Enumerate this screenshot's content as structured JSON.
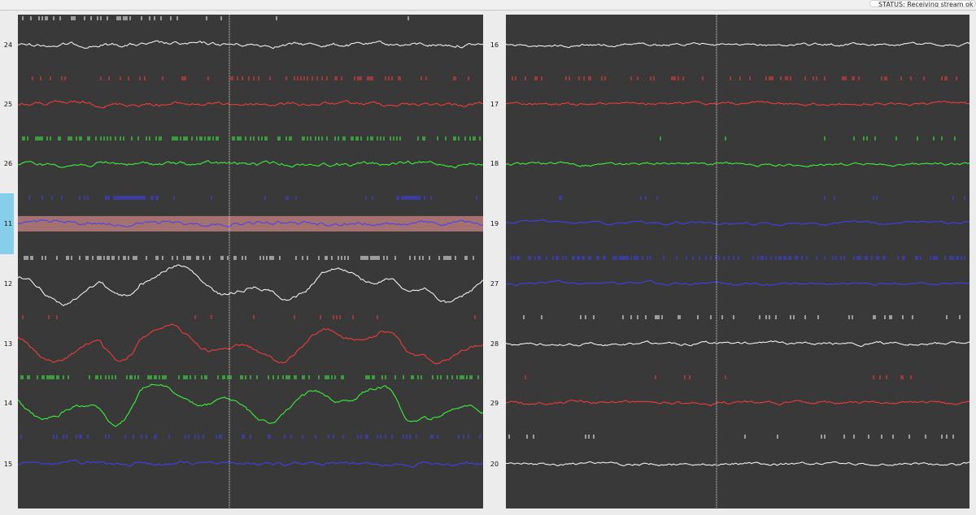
{
  "status_bar": {
    "text": "STATUS: Receiving stream ok"
  },
  "colors": {
    "white": "#ffffff",
    "red": "#ff3b3b",
    "green": "#3cff3c",
    "blue": "#4040ff",
    "panel_bg": "#393939",
    "selection": "#87ceeb",
    "highlight": "#c48080"
  },
  "panels": [
    {
      "id": "left",
      "channels": [
        {
          "label": "24",
          "color": "white",
          "spikes": "dense-edge"
        },
        {
          "label": "25",
          "color": "red",
          "spikes": "moderate"
        },
        {
          "label": "26",
          "color": "green",
          "spikes": "dense"
        },
        {
          "label": "11",
          "color": "blue",
          "spikes": "clustered",
          "selected": true
        },
        {
          "label": "12",
          "color": "white",
          "spikes": "dense"
        },
        {
          "label": "13",
          "color": "red",
          "spikes": "sparse"
        },
        {
          "label": "14",
          "color": "green",
          "spikes": "dense"
        },
        {
          "label": "15",
          "color": "blue",
          "spikes": "moderate"
        }
      ]
    },
    {
      "id": "right",
      "channels": [
        {
          "label": "16",
          "color": "white",
          "spikes": "none"
        },
        {
          "label": "17",
          "color": "red",
          "spikes": "moderate"
        },
        {
          "label": "18",
          "color": "green",
          "spikes": "sparse"
        },
        {
          "label": "19",
          "color": "blue",
          "spikes": "sparse"
        },
        {
          "label": "27",
          "color": "blue",
          "spikes": "dense"
        },
        {
          "label": "28",
          "color": "white",
          "spikes": "moderate"
        },
        {
          "label": "29",
          "color": "red",
          "spikes": "sparse"
        },
        {
          "label": "20",
          "color": "white",
          "spikes": "sparse"
        }
      ]
    }
  ]
}
